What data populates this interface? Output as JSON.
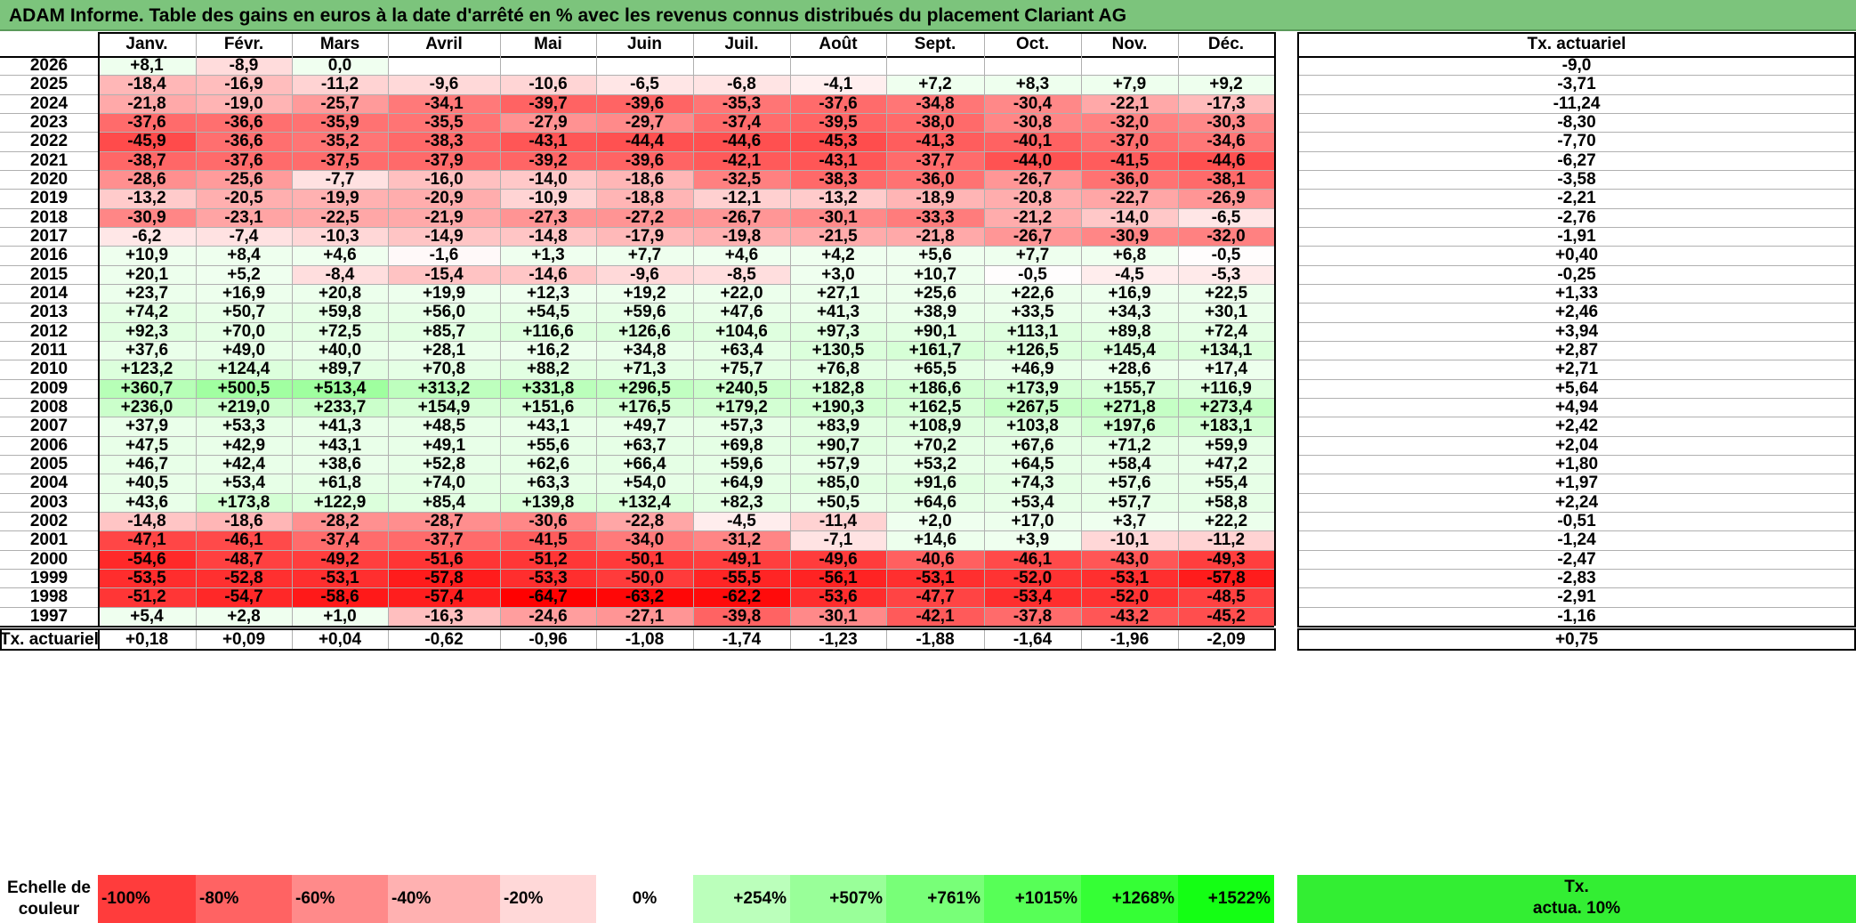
{
  "title": "ADAM Informe. Table des gains en euros à la date d'arrêté en % avec les revenus connus distribués du placement Clariant AG",
  "chart_data": {
    "type": "heatmap",
    "months": [
      "Janv.",
      "Févr.",
      "Mars",
      "Avril",
      "Mai",
      "Juin",
      "Juil.",
      "Août",
      "Sept.",
      "Oct.",
      "Nov.",
      "Déc."
    ],
    "annual_header": "Tx. actuariel",
    "rows": [
      {
        "year": "2026",
        "values": [
          "+8,1",
          "-8,9",
          "0,0",
          "",
          "",
          "",
          "",
          "",
          "",
          "",
          "",
          ""
        ],
        "annual": "-9,0"
      },
      {
        "year": "2025",
        "values": [
          "-18,4",
          "-16,9",
          "-11,2",
          "-9,6",
          "-10,6",
          "-6,5",
          "-6,8",
          "-4,1",
          "+7,2",
          "+8,3",
          "+7,9",
          "+9,2"
        ],
        "annual": "-3,71"
      },
      {
        "year": "2024",
        "values": [
          "-21,8",
          "-19,0",
          "-25,7",
          "-34,1",
          "-39,7",
          "-39,6",
          "-35,3",
          "-37,6",
          "-34,8",
          "-30,4",
          "-22,1",
          "-17,3"
        ],
        "annual": "-11,24"
      },
      {
        "year": "2023",
        "values": [
          "-37,6",
          "-36,6",
          "-35,9",
          "-35,5",
          "-27,9",
          "-29,7",
          "-37,4",
          "-39,5",
          "-38,0",
          "-30,8",
          "-32,0",
          "-30,3"
        ],
        "annual": "-8,30"
      },
      {
        "year": "2022",
        "values": [
          "-45,9",
          "-36,6",
          "-35,2",
          "-38,3",
          "-43,1",
          "-44,4",
          "-44,6",
          "-45,3",
          "-41,3",
          "-40,1",
          "-37,0",
          "-34,6"
        ],
        "annual": "-7,70"
      },
      {
        "year": "2021",
        "values": [
          "-38,7",
          "-37,6",
          "-37,5",
          "-37,9",
          "-39,2",
          "-39,6",
          "-42,1",
          "-43,1",
          "-37,7",
          "-44,0",
          "-41,5",
          "-44,6"
        ],
        "annual": "-6,27"
      },
      {
        "year": "2020",
        "values": [
          "-28,6",
          "-25,6",
          "-7,7",
          "-16,0",
          "-14,0",
          "-18,6",
          "-32,5",
          "-38,3",
          "-36,0",
          "-26,7",
          "-36,0",
          "-38,1"
        ],
        "annual": "-3,58"
      },
      {
        "year": "2019",
        "values": [
          "-13,2",
          "-20,5",
          "-19,9",
          "-20,9",
          "-10,9",
          "-18,8",
          "-12,1",
          "-13,2",
          "-18,9",
          "-20,8",
          "-22,7",
          "-26,9"
        ],
        "annual": "-2,21"
      },
      {
        "year": "2018",
        "values": [
          "-30,9",
          "-23,1",
          "-22,5",
          "-21,9",
          "-27,3",
          "-27,2",
          "-26,7",
          "-30,1",
          "-33,3",
          "-21,2",
          "-14,0",
          "-6,5"
        ],
        "annual": "-2,76"
      },
      {
        "year": "2017",
        "values": [
          "-6,2",
          "-7,4",
          "-10,3",
          "-14,9",
          "-14,8",
          "-17,9",
          "-19,8",
          "-21,5",
          "-21,8",
          "-26,7",
          "-30,9",
          "-32,0"
        ],
        "annual": "-1,91"
      },
      {
        "year": "2016",
        "values": [
          "+10,9",
          "+8,4",
          "+4,6",
          "-1,6",
          "+1,3",
          "+7,7",
          "+4,6",
          "+4,2",
          "+5,6",
          "+7,7",
          "+6,8",
          "-0,5"
        ],
        "annual": "+0,40"
      },
      {
        "year": "2015",
        "values": [
          "+20,1",
          "+5,2",
          "-8,4",
          "-15,4",
          "-14,6",
          "-9,6",
          "-8,5",
          "+3,0",
          "+10,7",
          "-0,5",
          "-4,5",
          "-5,3"
        ],
        "annual": "-0,25"
      },
      {
        "year": "2014",
        "values": [
          "+23,7",
          "+16,9",
          "+20,8",
          "+19,9",
          "+12,3",
          "+19,2",
          "+22,0",
          "+27,1",
          "+25,6",
          "+22,6",
          "+16,9",
          "+22,5"
        ],
        "annual": "+1,33"
      },
      {
        "year": "2013",
        "values": [
          "+74,2",
          "+50,7",
          "+59,8",
          "+56,0",
          "+54,5",
          "+59,6",
          "+47,6",
          "+41,3",
          "+38,9",
          "+33,5",
          "+34,3",
          "+30,1"
        ],
        "annual": "+2,46"
      },
      {
        "year": "2012",
        "values": [
          "+92,3",
          "+70,0",
          "+72,5",
          "+85,7",
          "+116,6",
          "+126,6",
          "+104,6",
          "+97,3",
          "+90,1",
          "+113,1",
          "+89,8",
          "+72,4"
        ],
        "annual": "+3,94"
      },
      {
        "year": "2011",
        "values": [
          "+37,6",
          "+49,0",
          "+40,0",
          "+28,1",
          "+16,2",
          "+34,8",
          "+63,4",
          "+130,5",
          "+161,7",
          "+126,5",
          "+145,4",
          "+134,1"
        ],
        "annual": "+2,87"
      },
      {
        "year": "2010",
        "values": [
          "+123,2",
          "+124,4",
          "+89,7",
          "+70,8",
          "+88,2",
          "+71,3",
          "+75,7",
          "+76,8",
          "+65,5",
          "+46,9",
          "+28,6",
          "+17,4"
        ],
        "annual": "+2,71"
      },
      {
        "year": "2009",
        "values": [
          "+360,7",
          "+500,5",
          "+513,4",
          "+313,2",
          "+331,8",
          "+296,5",
          "+240,5",
          "+182,8",
          "+186,6",
          "+173,9",
          "+155,7",
          "+116,9"
        ],
        "annual": "+5,64"
      },
      {
        "year": "2008",
        "values": [
          "+236,0",
          "+219,0",
          "+233,7",
          "+154,9",
          "+151,6",
          "+176,5",
          "+179,2",
          "+190,3",
          "+162,5",
          "+267,5",
          "+271,8",
          "+273,4"
        ],
        "annual": "+4,94"
      },
      {
        "year": "2007",
        "values": [
          "+37,9",
          "+53,3",
          "+41,3",
          "+48,5",
          "+43,1",
          "+49,7",
          "+57,3",
          "+83,9",
          "+108,9",
          "+103,8",
          "+197,6",
          "+183,1"
        ],
        "annual": "+2,42"
      },
      {
        "year": "2006",
        "values": [
          "+47,5",
          "+42,9",
          "+43,1",
          "+49,1",
          "+55,6",
          "+63,7",
          "+69,8",
          "+90,7",
          "+70,2",
          "+67,6",
          "+71,2",
          "+59,9"
        ],
        "annual": "+2,04"
      },
      {
        "year": "2005",
        "values": [
          "+46,7",
          "+42,4",
          "+38,6",
          "+52,8",
          "+62,6",
          "+66,4",
          "+59,6",
          "+57,9",
          "+53,2",
          "+64,5",
          "+58,4",
          "+47,2"
        ],
        "annual": "+1,80"
      },
      {
        "year": "2004",
        "values": [
          "+40,5",
          "+53,4",
          "+61,8",
          "+74,0",
          "+63,3",
          "+54,0",
          "+64,9",
          "+85,0",
          "+91,6",
          "+74,3",
          "+57,6",
          "+55,4"
        ],
        "annual": "+1,97"
      },
      {
        "year": "2003",
        "values": [
          "+43,6",
          "+173,8",
          "+122,9",
          "+85,4",
          "+139,8",
          "+132,4",
          "+82,3",
          "+50,5",
          "+64,6",
          "+53,4",
          "+57,7",
          "+58,8"
        ],
        "annual": "+2,24"
      },
      {
        "year": "2002",
        "values": [
          "-14,8",
          "-18,6",
          "-28,2",
          "-28,7",
          "-30,6",
          "-22,8",
          "-4,5",
          "-11,4",
          "+2,0",
          "+17,0",
          "+3,7",
          "+22,2"
        ],
        "annual": "-0,51"
      },
      {
        "year": "2001",
        "values": [
          "-47,1",
          "-46,1",
          "-37,4",
          "-37,7",
          "-41,5",
          "-34,0",
          "-31,2",
          "-7,1",
          "+14,6",
          "+3,9",
          "-10,1",
          "-11,2"
        ],
        "annual": "-1,24"
      },
      {
        "year": "2000",
        "values": [
          "-54,6",
          "-48,7",
          "-49,2",
          "-51,6",
          "-51,2",
          "-50,1",
          "-49,1",
          "-49,6",
          "-40,6",
          "-46,1",
          "-43,0",
          "-49,3"
        ],
        "annual": "-2,47"
      },
      {
        "year": "1999",
        "values": [
          "-53,5",
          "-52,8",
          "-53,1",
          "-57,8",
          "-53,3",
          "-50,0",
          "-55,5",
          "-56,1",
          "-53,1",
          "-52,0",
          "-53,1",
          "-57,8"
        ],
        "annual": "-2,83"
      },
      {
        "year": "1998",
        "values": [
          "-51,2",
          "-54,7",
          "-58,6",
          "-57,4",
          "-64,7",
          "-63,2",
          "-62,2",
          "-53,6",
          "-47,7",
          "-53,4",
          "-52,0",
          "-48,5"
        ],
        "annual": "-2,91"
      },
      {
        "year": "1997",
        "values": [
          "+5,4",
          "+2,8",
          "+1,0",
          "-16,3",
          "-24,6",
          "-27,1",
          "-39,8",
          "-30,1",
          "-42,1",
          "-37,8",
          "-43,2",
          "-45,2"
        ],
        "annual": "-1,16"
      }
    ],
    "footer": {
      "label": "Tx. actuariel",
      "values": [
        "+0,18",
        "+0,09",
        "+0,04",
        "-0,62",
        "-0,96",
        "-1,08",
        "-1,74",
        "-1,23",
        "-1,88",
        "-1,64",
        "-1,96",
        "-2,09"
      ],
      "annual": "+0,75"
    },
    "color_scale": {
      "label_line1": "Echelle de",
      "label_line2": "couleur",
      "stops": [
        "-100%",
        "-80%",
        "-60%",
        "-40%",
        "-20%",
        "0%",
        "+254%",
        "+507%",
        "+761%",
        "+1015%",
        "+1268%",
        "+1522%"
      ],
      "stop_values": [
        -100,
        -80,
        -60,
        -40,
        -20,
        0,
        254,
        507,
        761,
        1015,
        1268,
        1522
      ],
      "annual_line1": "Tx.",
      "annual_line2": "actua. 10%"
    },
    "colors": {
      "negative_max": "#ff0000",
      "positive_max": "#00ff00",
      "neutral": "#ffffff",
      "title_background": "#7cc47c"
    }
  }
}
